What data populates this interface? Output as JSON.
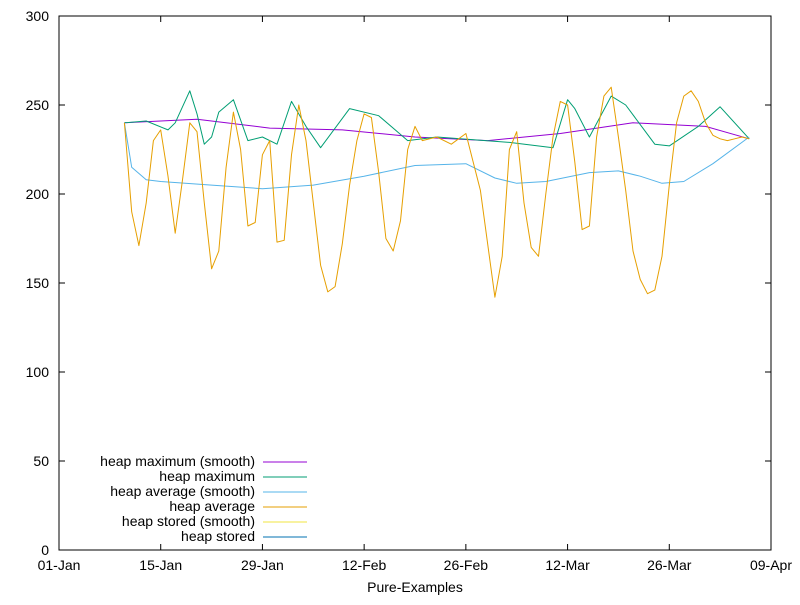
{
  "chart_data": {
    "type": "line",
    "xlabel": "Pure-Examples",
    "ylabel": "",
    "ylim": [
      0,
      300
    ],
    "yticks": [
      0,
      50,
      100,
      150,
      200,
      250,
      300
    ],
    "xticks": [
      {
        "date": "2019-01-01",
        "label": "01-Jan"
      },
      {
        "date": "2019-01-15",
        "label": "15-Jan"
      },
      {
        "date": "2019-01-29",
        "label": "29-Jan"
      },
      {
        "date": "2019-02-12",
        "label": "12-Feb"
      },
      {
        "date": "2019-02-26",
        "label": "26-Feb"
      },
      {
        "date": "2019-03-12",
        "label": "12-Mar"
      },
      {
        "date": "2019-03-26",
        "label": "26-Mar"
      },
      {
        "date": "2019-04-09",
        "label": "09-Apr"
      }
    ],
    "xlim": [
      "2019-01-01",
      "2019-04-09"
    ],
    "grid": false,
    "legend_position": "bottom-left",
    "series": [
      {
        "name": "heap maximum (smooth)",
        "color": "#9400d3",
        "x": [
          "2019-01-10",
          "2019-01-20",
          "2019-01-30",
          "2019-02-09",
          "2019-02-19",
          "2019-03-01",
          "2019-03-11",
          "2019-03-21",
          "2019-03-31",
          "2019-04-06"
        ],
        "values": [
          240,
          242,
          237,
          236,
          232,
          230,
          234,
          240,
          238,
          231
        ]
      },
      {
        "name": "heap maximum",
        "color": "#009e73",
        "x": [
          "2019-01-10",
          "2019-01-13",
          "2019-01-16",
          "2019-01-17",
          "2019-01-19",
          "2019-01-20",
          "2019-01-21",
          "2019-01-22",
          "2019-01-23",
          "2019-01-25",
          "2019-01-27",
          "2019-01-29",
          "2019-01-31",
          "2019-02-02",
          "2019-02-04",
          "2019-02-06",
          "2019-02-10",
          "2019-02-14",
          "2019-02-18",
          "2019-02-22",
          "2019-03-04",
          "2019-03-10",
          "2019-03-12",
          "2019-03-13",
          "2019-03-15",
          "2019-03-18",
          "2019-03-20",
          "2019-03-24",
          "2019-03-26",
          "2019-03-30",
          "2019-04-02",
          "2019-04-06"
        ],
        "values": [
          240,
          241,
          236,
          240,
          258,
          245,
          228,
          232,
          246,
          253,
          230,
          232,
          228,
          252,
          238,
          226,
          248,
          244,
          230,
          232,
          229,
          226,
          253,
          248,
          232,
          255,
          250,
          228,
          227,
          238,
          249,
          231
        ]
      },
      {
        "name": "heap average (smooth)",
        "color": "#56b4e9",
        "x": [
          "2019-01-10",
          "2019-01-11",
          "2019-01-13",
          "2019-01-15",
          "2019-01-22",
          "2019-01-29",
          "2019-02-05",
          "2019-02-12",
          "2019-02-19",
          "2019-02-26",
          "2019-03-02",
          "2019-03-05",
          "2019-03-09",
          "2019-03-15",
          "2019-03-19",
          "2019-03-22",
          "2019-03-25",
          "2019-03-28",
          "2019-04-01",
          "2019-04-06"
        ],
        "values": [
          240,
          215,
          208,
          207,
          205,
          203,
          205,
          210,
          216,
          217,
          209,
          206,
          207,
          212,
          213,
          210,
          206,
          207,
          217,
          232
        ]
      },
      {
        "name": "heap average",
        "color": "#e69f00",
        "x": [
          "2019-01-10",
          "2019-01-11",
          "2019-01-12",
          "2019-01-13",
          "2019-01-14",
          "2019-01-15",
          "2019-01-16",
          "2019-01-17",
          "2019-01-18",
          "2019-01-19",
          "2019-01-20",
          "2019-01-21",
          "2019-01-22",
          "2019-01-23",
          "2019-01-24",
          "2019-01-25",
          "2019-01-26",
          "2019-01-27",
          "2019-01-28",
          "2019-01-29",
          "2019-01-30",
          "2019-01-31",
          "2019-02-01",
          "2019-02-02",
          "2019-02-03",
          "2019-02-04",
          "2019-02-05",
          "2019-02-06",
          "2019-02-07",
          "2019-02-08",
          "2019-02-09",
          "2019-02-10",
          "2019-02-11",
          "2019-02-12",
          "2019-02-13",
          "2019-02-14",
          "2019-02-15",
          "2019-02-16",
          "2019-02-17",
          "2019-02-18",
          "2019-02-19",
          "2019-02-20",
          "2019-02-22",
          "2019-02-24",
          "2019-02-26",
          "2019-02-28",
          "2019-03-02",
          "2019-03-03",
          "2019-03-04",
          "2019-03-05",
          "2019-03-06",
          "2019-03-07",
          "2019-03-08",
          "2019-03-09",
          "2019-03-10",
          "2019-03-11",
          "2019-03-12",
          "2019-03-13",
          "2019-03-14",
          "2019-03-15",
          "2019-03-16",
          "2019-03-17",
          "2019-03-18",
          "2019-03-19",
          "2019-03-20",
          "2019-03-21",
          "2019-03-22",
          "2019-03-23",
          "2019-03-24",
          "2019-03-25",
          "2019-03-26",
          "2019-03-27",
          "2019-03-28",
          "2019-03-29",
          "2019-03-30",
          "2019-03-31",
          "2019-04-01",
          "2019-04-02",
          "2019-04-03",
          "2019-04-04",
          "2019-04-05",
          "2019-04-06"
        ],
        "values": [
          240,
          190,
          171,
          195,
          230,
          236,
          210,
          178,
          208,
          240,
          235,
          195,
          158,
          168,
          215,
          246,
          225,
          182,
          184,
          222,
          230,
          173,
          174,
          222,
          250,
          230,
          195,
          160,
          145,
          148,
          172,
          205,
          230,
          245,
          243,
          212,
          175,
          168,
          185,
          225,
          238,
          230,
          232,
          228,
          234,
          202,
          142,
          165,
          225,
          235,
          195,
          170,
          165,
          200,
          232,
          252,
          250,
          218,
          180,
          182,
          232,
          255,
          260,
          232,
          202,
          168,
          152,
          144,
          146,
          165,
          205,
          240,
          255,
          258,
          252,
          240,
          233,
          231,
          230,
          231,
          232,
          231
        ]
      },
      {
        "name": "heap stored (smooth)",
        "color": "#f0e442",
        "x": [],
        "values": []
      },
      {
        "name": "heap stored",
        "color": "#0072b2",
        "x": [],
        "values": []
      }
    ]
  }
}
